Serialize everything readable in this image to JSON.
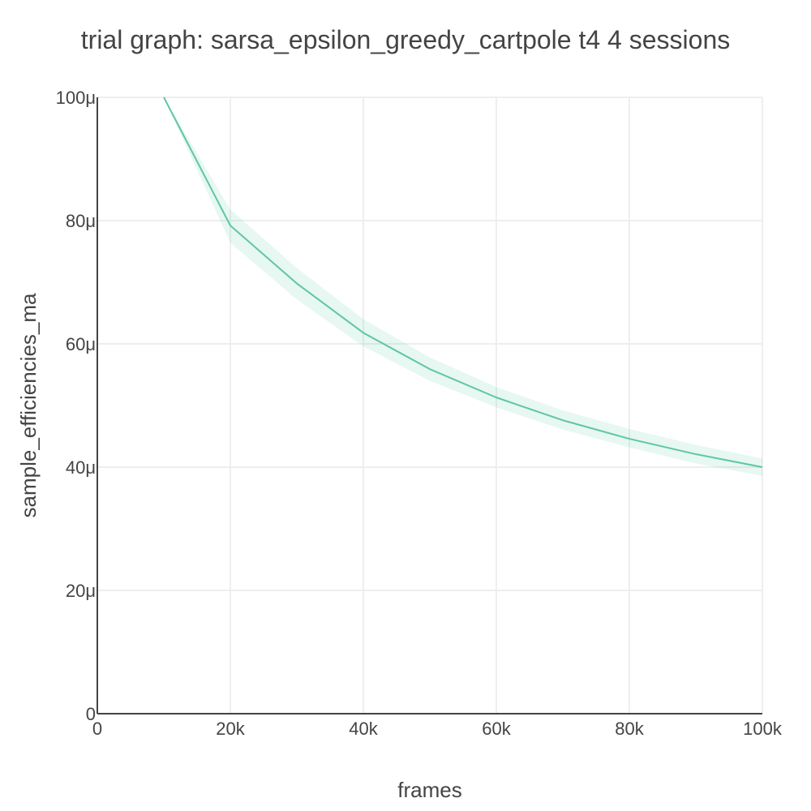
{
  "chart_data": {
    "type": "line",
    "title": "trial graph: sarsa_epsilon_greedy_cartpole t4 4 sessions",
    "xlabel": "frames",
    "ylabel": "sample_efficiencies_ma",
    "xlim": [
      0,
      100000
    ],
    "ylim": [
      0,
      100
    ],
    "y_unit_note": "",
    "x_ticks": [
      0,
      20000,
      40000,
      60000,
      80000,
      100000
    ],
    "x_tick_labels": [
      "0",
      "20k",
      "40k",
      "60k",
      "80k",
      "100k"
    ],
    "y_ticks": [
      0,
      20,
      40,
      60,
      80,
      100
    ],
    "y_tick_labels": [
      "0",
      "20μ",
      "40μ",
      "60μ",
      "80μ",
      "100μ"
    ],
    "grid": true,
    "legend": "none",
    "series": [
      {
        "x": [
          10000,
          20000,
          30000,
          40000,
          50000,
          60000,
          70000,
          80000,
          90000,
          100000
        ],
        "values": [
          100,
          79.2,
          69.8,
          61.8,
          55.9,
          51.3,
          47.6,
          44.6,
          42.1,
          40.0
        ],
        "upper": [
          100,
          81.8,
          72.3,
          64.0,
          57.8,
          53.0,
          49.2,
          46.2,
          43.6,
          41.4
        ],
        "lower": [
          100,
          76.4,
          67.2,
          59.6,
          54.0,
          49.7,
          46.1,
          43.2,
          40.6,
          38.6
        ],
        "line_color": "#5fc7a0",
        "band_color": "#5fc7a0"
      }
    ]
  }
}
